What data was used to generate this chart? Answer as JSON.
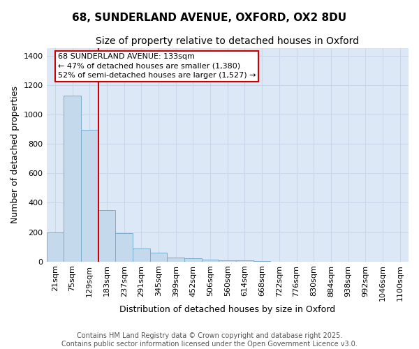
{
  "title_line1": "68, SUNDERLAND AVENUE, OXFORD, OX2 8DU",
  "title_line2": "Size of property relative to detached houses in Oxford",
  "xlabel": "Distribution of detached houses by size in Oxford",
  "ylabel": "Number of detached properties",
  "bins": [
    "21sqm",
    "75sqm",
    "129sqm",
    "183sqm",
    "237sqm",
    "291sqm",
    "345sqm",
    "399sqm",
    "452sqm",
    "506sqm",
    "560sqm",
    "614sqm",
    "668sqm",
    "722sqm",
    "776sqm",
    "830sqm",
    "884sqm",
    "938sqm",
    "992sqm",
    "1046sqm",
    "1100sqm"
  ],
  "values": [
    197,
    1130,
    895,
    350,
    195,
    88,
    58,
    25,
    20,
    14,
    10,
    6,
    5,
    0,
    0,
    0,
    0,
    0,
    0,
    0,
    0
  ],
  "bar_color": "#c5d9ed",
  "bar_edge_color": "#7aadcf",
  "grid_color": "#c8d8ea",
  "plot_bg_color": "#dce8f5",
  "fig_bg_color": "#ffffff",
  "vline_x": 2.5,
  "vline_color": "#cc0000",
  "annotation_line1": "68 SUNDERLAND AVENUE: 133sqm",
  "annotation_line2": "← 47% of detached houses are smaller (1,380)",
  "annotation_line3": "52% of semi-detached houses are larger (1,527) →",
  "ylim": [
    0,
    1450
  ],
  "yticks": [
    0,
    200,
    400,
    600,
    800,
    1000,
    1200,
    1400
  ],
  "footer_line1": "Contains HM Land Registry data © Crown copyright and database right 2025.",
  "footer_line2": "Contains public sector information licensed under the Open Government Licence v3.0.",
  "title_fontsize": 11,
  "subtitle_fontsize": 10,
  "axis_label_fontsize": 9,
  "tick_fontsize": 8,
  "annot_fontsize": 8,
  "footer_fontsize": 7
}
